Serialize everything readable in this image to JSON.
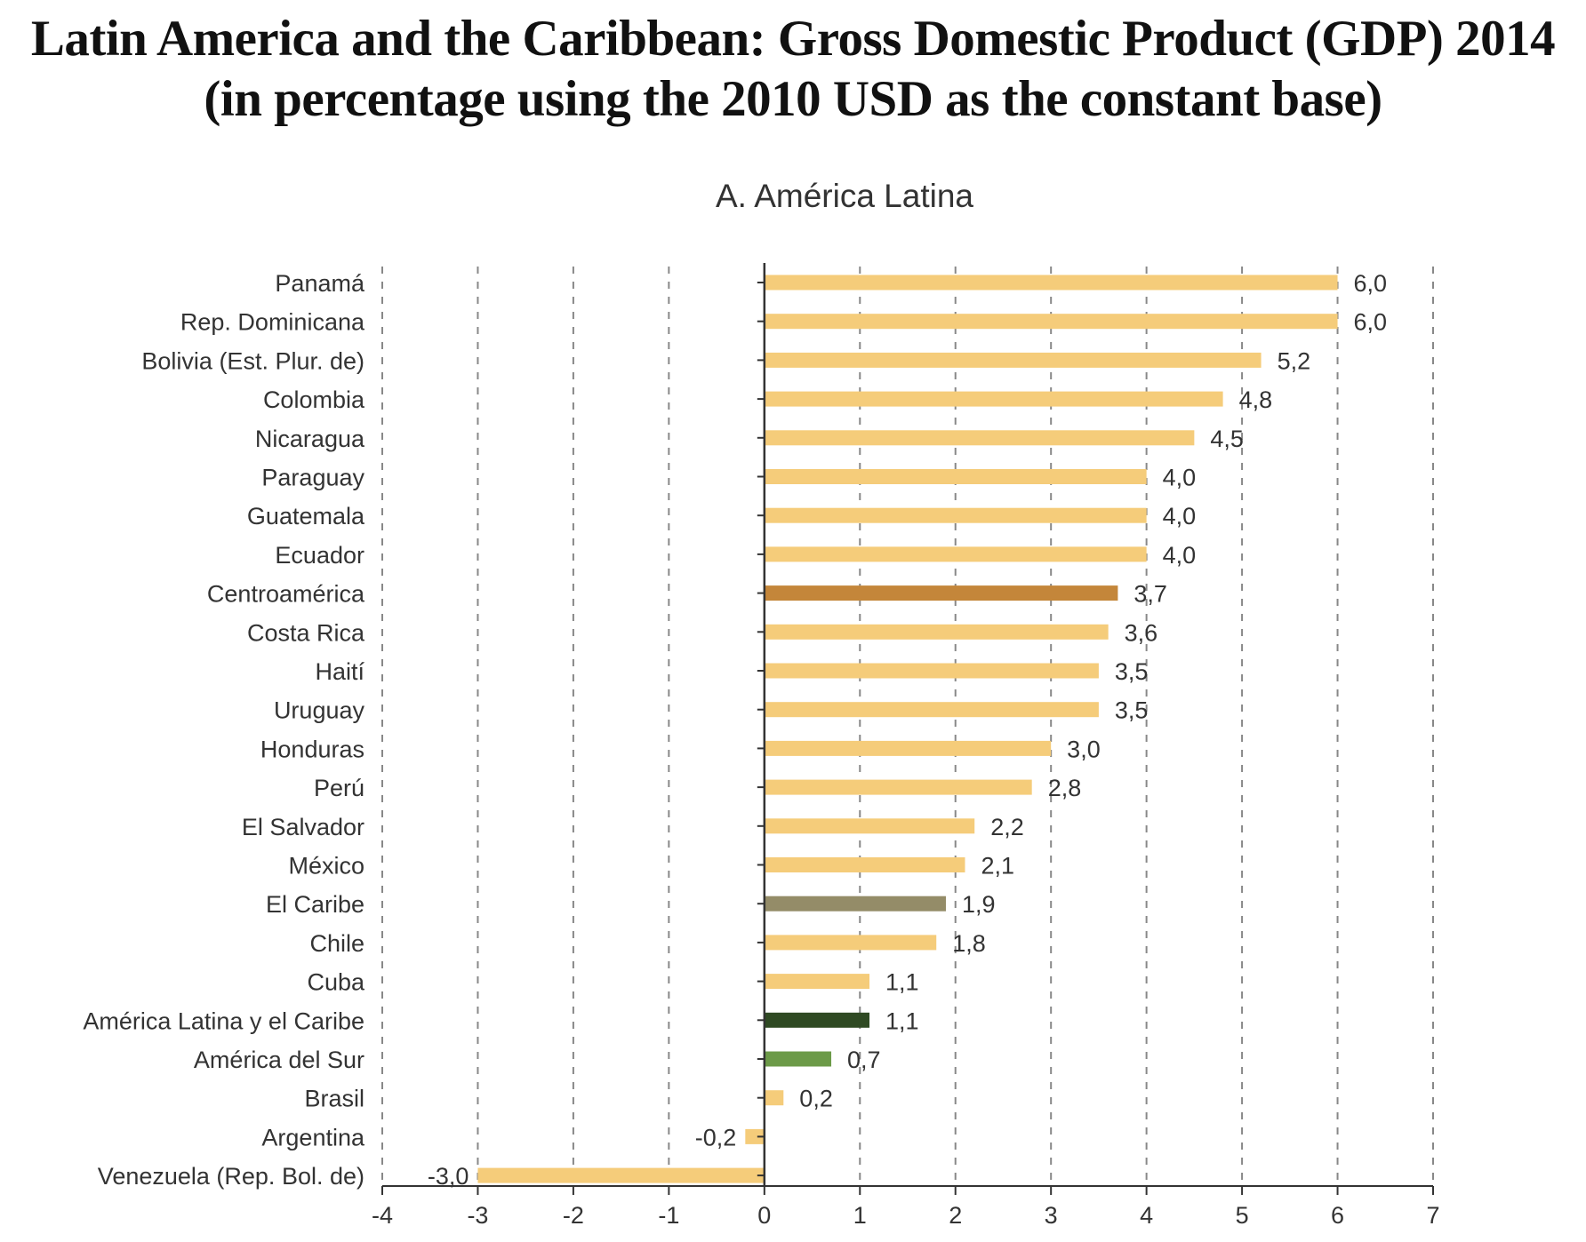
{
  "title": {
    "line1": "Latin America and the Caribbean: Gross Domestic Product (GDP) 2014",
    "line2": "(in percentage using the 2010 USD as the constant base)"
  },
  "colors": {
    "default": "#F5CC7A",
    "centroamerica": "#C4863A",
    "el_caribe": "#948C68",
    "america_latina_y_el_caribe": "#2F4A23",
    "america_del_sur": "#6C9A48",
    "axis": "#333333",
    "grid": "#888888"
  },
  "chart_data": {
    "type": "bar",
    "orientation": "horizontal",
    "subtitle": "A. América Latina",
    "xlim": [
      -4,
      7
    ],
    "xticks": [
      "-4",
      "-3",
      "-2",
      "-1",
      "0",
      "1",
      "2",
      "3",
      "4",
      "5",
      "6",
      "7"
    ],
    "grid": "vertical dashed",
    "categories": [
      "Panamá",
      "Rep. Dominicana",
      "Bolivia (Est. Plur. de)",
      "Colombia",
      "Nicaragua",
      "Paraguay",
      "Guatemala",
      "Ecuador",
      "Centroamérica",
      "Costa Rica",
      "Haití",
      "Uruguay",
      "Honduras",
      "Perú",
      "El Salvador",
      "México",
      "El Caribe",
      "Chile",
      "Cuba",
      "América Latina y el Caribe",
      "América del Sur",
      "Brasil",
      "Argentina",
      "Venezuela (Rep. Bol. de)"
    ],
    "values": [
      6.0,
      6.0,
      5.2,
      4.8,
      4.5,
      4.0,
      4.0,
      4.0,
      3.7,
      3.6,
      3.5,
      3.5,
      3.0,
      2.8,
      2.2,
      2.1,
      1.9,
      1.8,
      1.1,
      1.1,
      0.7,
      0.2,
      -0.2,
      -3.0
    ],
    "value_labels": [
      "6,0",
      "6,0",
      "5,2",
      "4,8",
      "4,5",
      "4,0",
      "4,0",
      "4,0",
      "3,7",
      "3,6",
      "3,5",
      "3,5",
      "3,0",
      "2,8",
      "2,2",
      "2,1",
      "1,9",
      "1,8",
      "1,1",
      "1,1",
      "0,7",
      "0,2",
      "-0,2",
      "-3,0"
    ],
    "bar_color_keys": [
      "default",
      "default",
      "default",
      "default",
      "default",
      "default",
      "default",
      "default",
      "centroamerica",
      "default",
      "default",
      "default",
      "default",
      "default",
      "default",
      "default",
      "el_caribe",
      "default",
      "default",
      "america_latina_y_el_caribe",
      "america_del_sur",
      "default",
      "default",
      "default"
    ]
  }
}
